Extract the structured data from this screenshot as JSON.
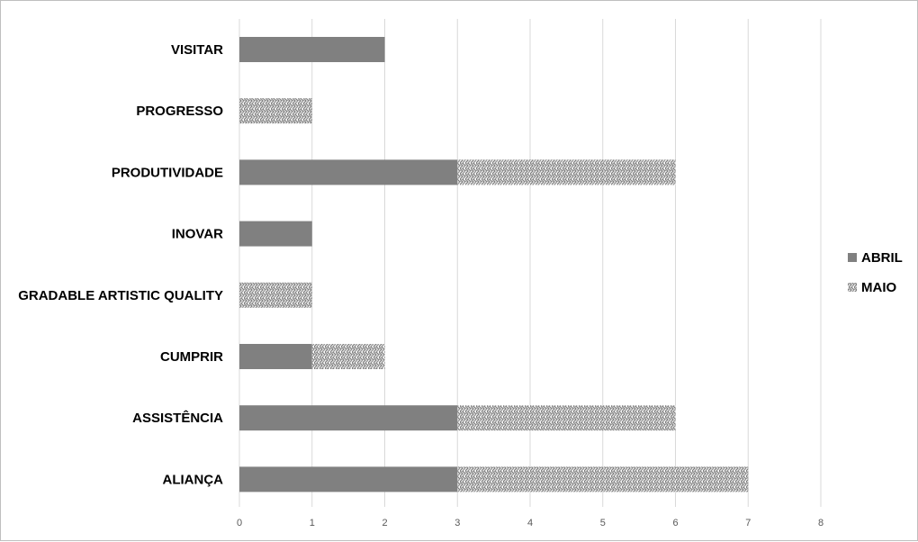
{
  "chart_data": {
    "type": "bar",
    "orientation": "horizontal",
    "stacked": true,
    "categories": [
      "VISITAR",
      "PROGRESSO",
      "PRODUTIVIDADE",
      "INOVAR",
      "GRADABLE ARTISTIC QUALITY",
      "CUMPRIR",
      "ASSISTÊNCIA",
      "ALIANÇA"
    ],
    "series": [
      {
        "name": "ABRIL",
        "values": [
          2,
          0,
          3,
          1,
          0,
          1,
          3,
          3
        ],
        "color": "#808080",
        "fill": "solid"
      },
      {
        "name": "MAIO",
        "values": [
          0,
          1,
          3,
          0,
          1,
          1,
          3,
          4
        ],
        "color": "#808080",
        "fill": "pattern"
      }
    ],
    "xlim": [
      0,
      8
    ],
    "xticks": [
      "0",
      "1",
      "2",
      "3",
      "4",
      "5",
      "6",
      "7",
      "8"
    ],
    "grid": "vertical",
    "legend": "right",
    "title": "",
    "xlabel": "",
    "ylabel": ""
  }
}
